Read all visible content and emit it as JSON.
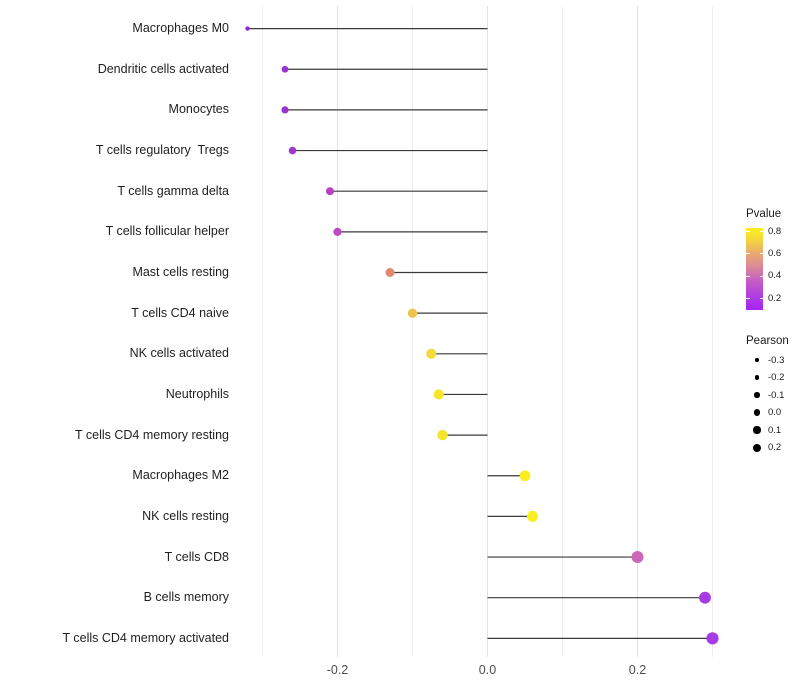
{
  "figure": {
    "background": "#ffffff"
  },
  "chart_data": {
    "type": "scatter",
    "variant": "horizontal-lollipop",
    "title": "",
    "xlabel": "",
    "ylabel": "",
    "grid": "vertical-only",
    "baseline": 0.0,
    "xlim": [
      -0.33,
      0.33
    ],
    "x_ticks": [
      {
        "value": -0.2,
        "label": "-0.2"
      },
      {
        "value": 0.0,
        "label": "0.0"
      },
      {
        "value": 0.2,
        "label": "0.2"
      }
    ],
    "x_minor_gridlines": [
      -0.3,
      -0.1,
      0.1,
      0.3
    ],
    "rows": [
      {
        "label": "Macrophages M0",
        "pearson": -0.32,
        "pvalue": 0.1,
        "color": "#8F2BD1",
        "radius": 2.2
      },
      {
        "label": "Dendritic cells activated",
        "pearson": -0.27,
        "pvalue": 0.13,
        "color": "#9A32D4",
        "radius": 3.4
      },
      {
        "label": "Monocytes",
        "pearson": -0.27,
        "pvalue": 0.13,
        "color": "#9B33D2",
        "radius": 3.6
      },
      {
        "label": "T cells regulatory  Tregs",
        "pearson": -0.26,
        "pvalue": 0.15,
        "color": "#A238CE",
        "radius": 3.8
      },
      {
        "label": "T cells gamma delta",
        "pearson": -0.21,
        "pvalue": 0.24,
        "color": "#B83FC6",
        "radius": 4.0
      },
      {
        "label": "T cells follicular helper",
        "pearson": -0.2,
        "pvalue": 0.26,
        "color": "#BC49C3",
        "radius": 4.1
      },
      {
        "label": "Mast cells resting",
        "pearson": -0.13,
        "pvalue": 0.52,
        "color": "#E18A70",
        "radius": 4.5
      },
      {
        "label": "T cells CD4 naive",
        "pearson": -0.1,
        "pvalue": 0.66,
        "color": "#EDC24E",
        "radius": 4.7
      },
      {
        "label": "NK cells activated",
        "pearson": -0.075,
        "pvalue": 0.72,
        "color": "#F3DC37",
        "radius": 5.0
      },
      {
        "label": "Neutrophils",
        "pearson": -0.065,
        "pvalue": 0.76,
        "color": "#F6E52C",
        "radius": 5.1
      },
      {
        "label": "T cells CD4 memory resting",
        "pearson": -0.06,
        "pvalue": 0.76,
        "color": "#F6E52C",
        "radius": 5.2
      },
      {
        "label": "Macrophages M2",
        "pearson": 0.05,
        "pvalue": 0.8,
        "color": "#F8EE21",
        "radius": 5.4
      },
      {
        "label": "NK cells resting",
        "pearson": 0.06,
        "pvalue": 0.8,
        "color": "#F8EE21",
        "radius": 5.5
      },
      {
        "label": "T cells CD8",
        "pearson": 0.2,
        "pvalue": 0.35,
        "color": "#CC67B8",
        "radius": 6.0
      },
      {
        "label": "B cells memory",
        "pearson": 0.29,
        "pvalue": 0.17,
        "color": "#A93BE3",
        "radius": 5.9
      },
      {
        "label": "T cells CD4 memory activated",
        "pearson": 0.3,
        "pvalue": 0.17,
        "color": "#A73BE6",
        "radius": 6.1
      }
    ],
    "stem_color": "#3a3a3a",
    "major_grid_color": "#e3e3e3",
    "minor_grid_color": "#efefef",
    "legend_position": "right",
    "legends": {
      "pvalue": {
        "title": "Pvalue",
        "tick_labels": [
          "0.8",
          "0.6",
          "0.4",
          "0.2"
        ],
        "gradient_stops": [
          {
            "pos": 0,
            "color": "#A524F5"
          },
          {
            "pos": 15,
            "color": "#AF3BE2"
          },
          {
            "pos": 35,
            "color": "#C55BC5"
          },
          {
            "pos": 52,
            "color": "#D9879B"
          },
          {
            "pos": 70,
            "color": "#E9AC6C"
          },
          {
            "pos": 88,
            "color": "#F6DC35"
          },
          {
            "pos": 100,
            "color": "#F9F021"
          }
        ]
      },
      "pearson": {
        "title": "Pearson",
        "dot_color": "#000000",
        "entries": [
          {
            "label": "-0.3",
            "radius": 1.7
          },
          {
            "label": "-0.2",
            "radius": 2.2
          },
          {
            "label": "-0.1",
            "radius": 2.7
          },
          {
            "label": "0.0",
            "radius": 3.2
          },
          {
            "label": "0.1",
            "radius": 3.6
          },
          {
            "label": "0.2",
            "radius": 4.0
          }
        ]
      }
    }
  }
}
